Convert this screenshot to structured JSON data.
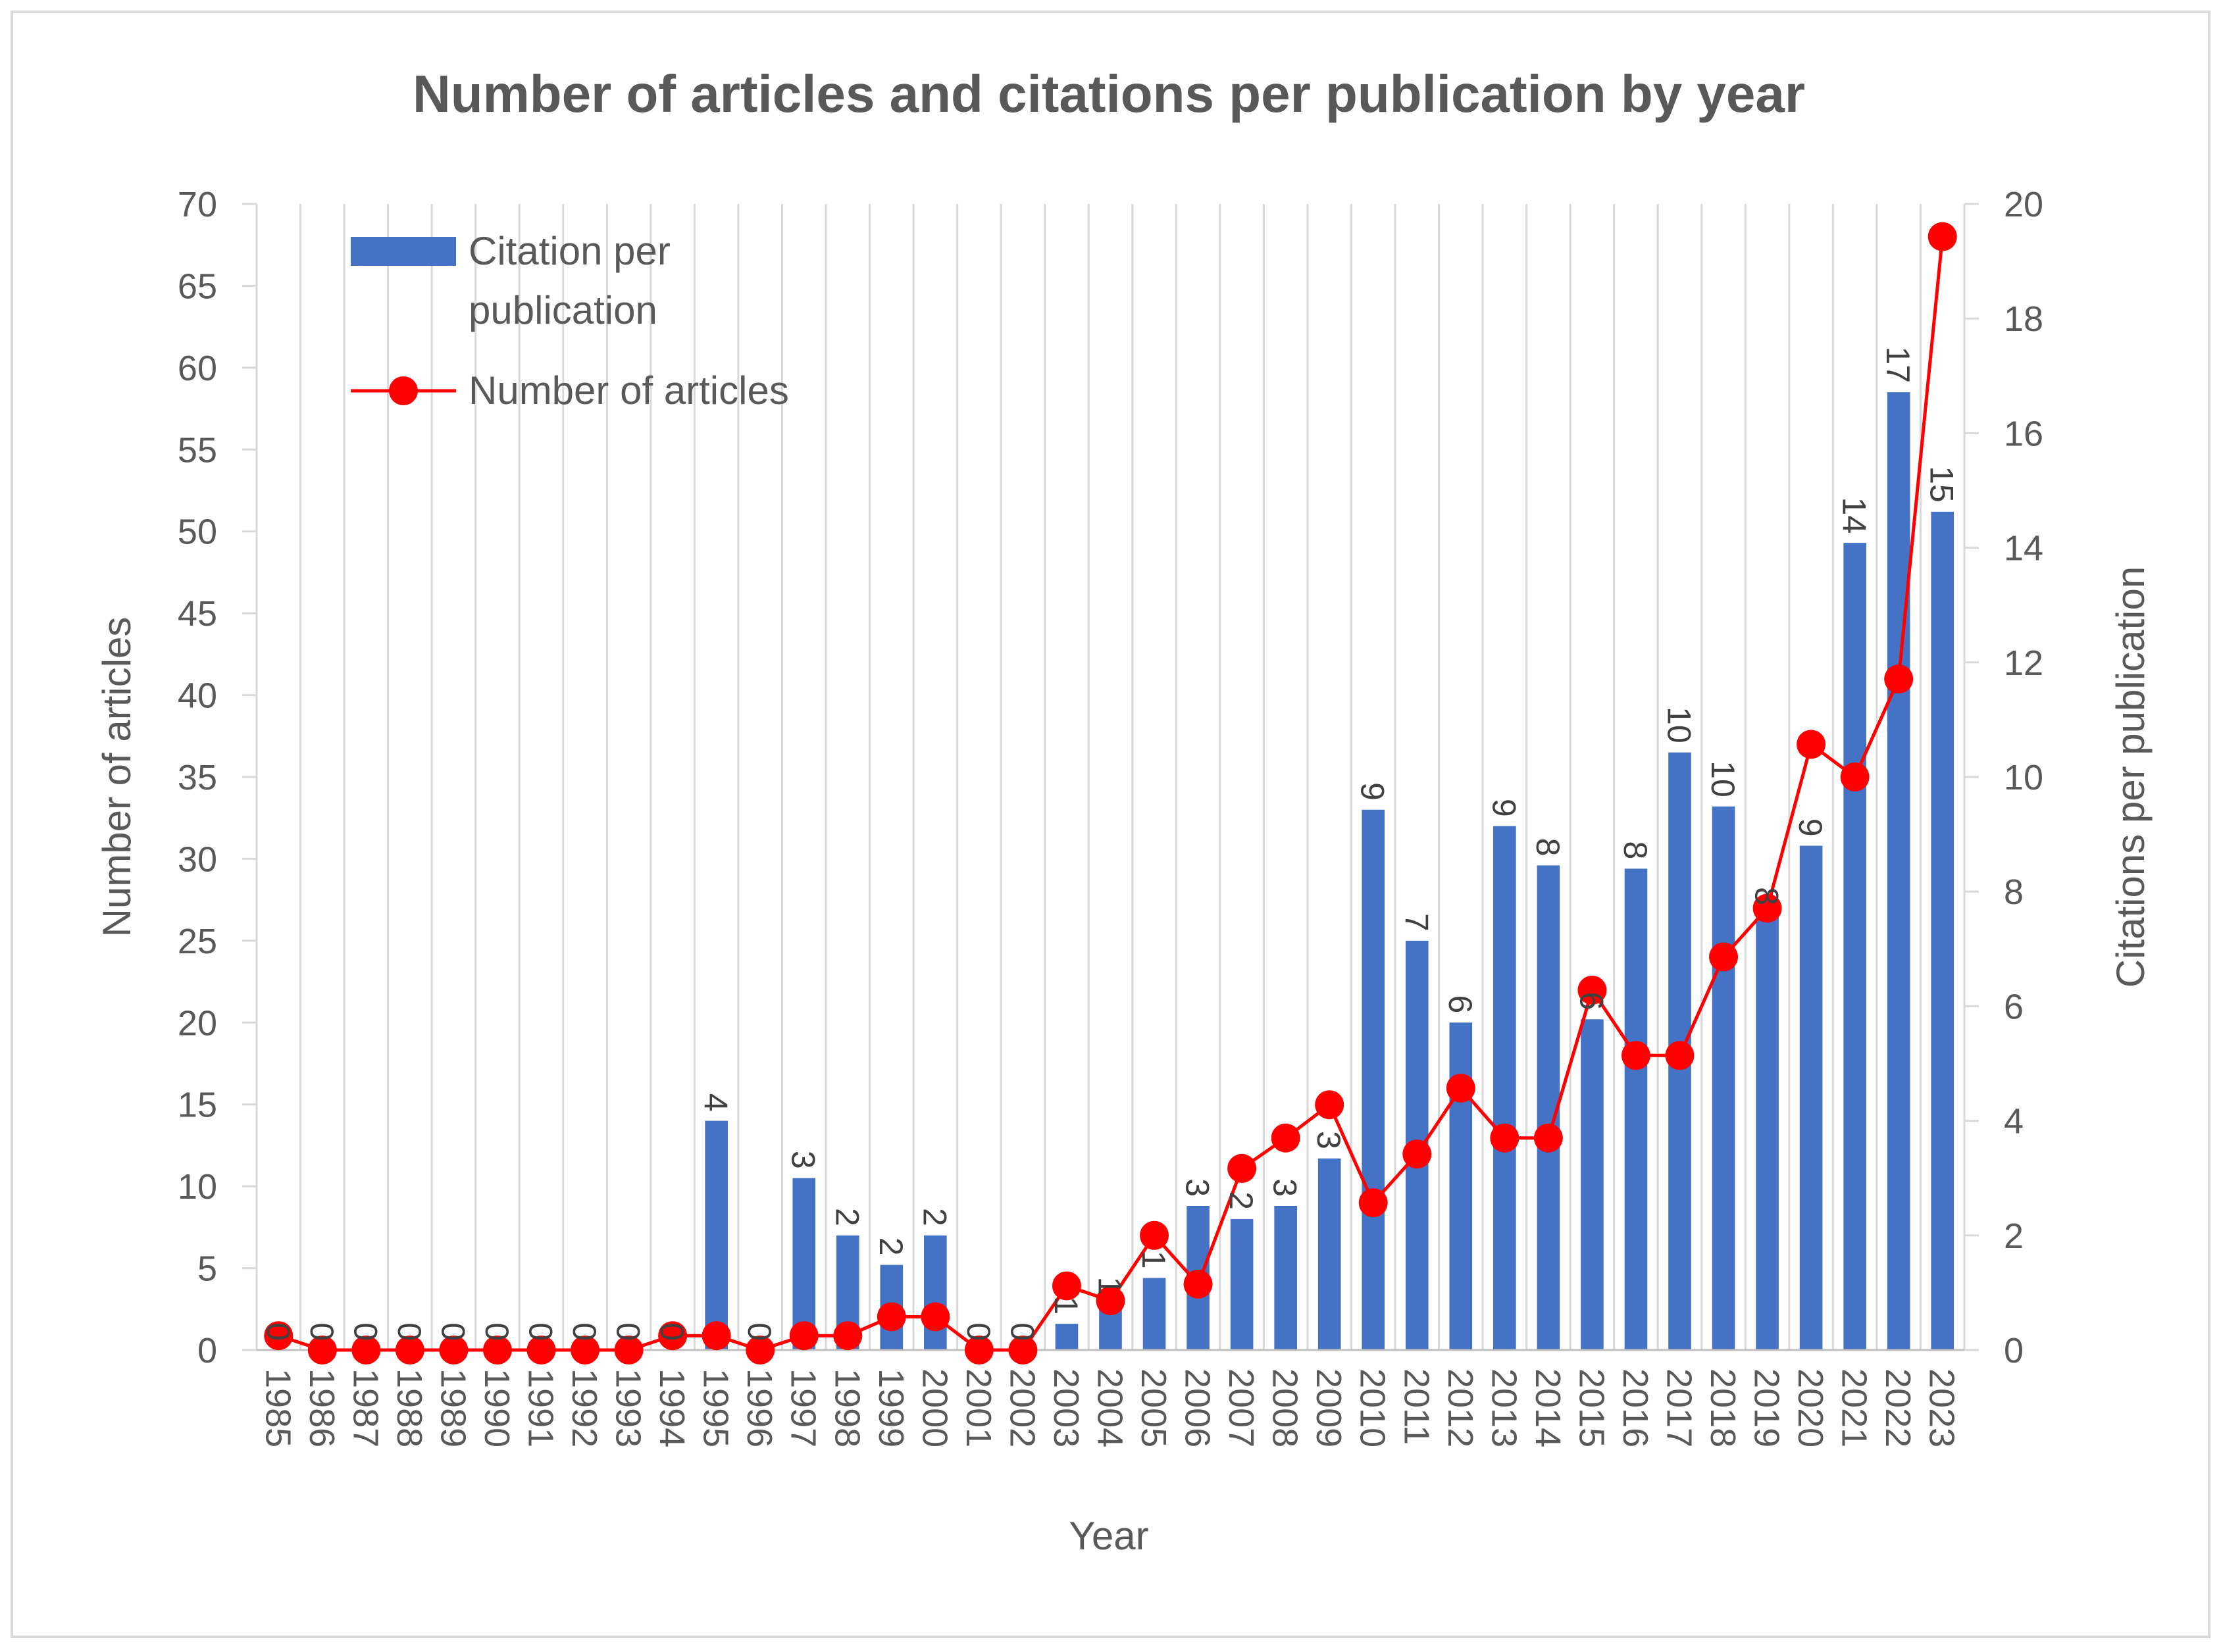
{
  "chart_data": {
    "type": "bar",
    "title": "Number of articles and citations per publication  by year",
    "xlabel": "Year",
    "ylabel": "Number of articles",
    "y2label": "Citations per publication",
    "ylim": [
      0,
      70
    ],
    "y2lim": [
      0,
      20
    ],
    "y_ticks": [
      "0",
      "5",
      "10",
      "15",
      "20",
      "25",
      "30",
      "35",
      "40",
      "45",
      "50",
      "55",
      "60",
      "65",
      "70"
    ],
    "y2_ticks": [
      "0",
      "2",
      "4",
      "6",
      "8",
      "10",
      "12",
      "14",
      "16",
      "18",
      "20"
    ],
    "grid": true,
    "legend_position": "top-left",
    "categories": [
      "1985",
      "1986",
      "1987",
      "1988",
      "1989",
      "1990",
      "1991",
      "1992",
      "1993",
      "1994",
      "1995",
      "1996",
      "1997",
      "1998",
      "1999",
      "2000",
      "2001",
      "2002",
      "2003",
      "2004",
      "2005",
      "2006",
      "2007",
      "2008",
      "2009",
      "2010",
      "2011",
      "2012",
      "2013",
      "2014",
      "2015",
      "2016",
      "2017",
      "2018",
      "2019",
      "2020",
      "2021",
      "2022",
      "2023"
    ],
    "series": [
      {
        "name": "Citation per publication",
        "type": "bar",
        "axis": "left",
        "color": "#4472C4",
        "values": [
          0,
          0,
          0,
          0,
          0,
          0,
          0,
          0,
          0,
          0,
          14,
          0,
          10.5,
          7,
          5.2,
          7,
          0,
          0,
          1.6,
          2.8,
          4.4,
          8.8,
          8,
          8.8,
          11.7,
          33,
          25,
          20,
          32,
          29.6,
          20.2,
          29.4,
          36.5,
          33.2,
          26.6,
          30.8,
          49.3,
          58.5,
          51.2
        ],
        "labels": [
          "0",
          "0",
          "0",
          "0",
          "0",
          "0",
          "0",
          "0",
          "0",
          "0",
          "4",
          "0",
          "3",
          "2",
          "2",
          "2",
          "0",
          "0",
          "1",
          "1",
          "1",
          "3",
          "2",
          "3",
          "3",
          "9",
          "7",
          "6",
          "9",
          "8",
          "6",
          "8",
          "10",
          "10",
          "8",
          "9",
          "14",
          "17",
          "15"
        ]
      },
      {
        "name": "Number of articles",
        "type": "line",
        "axis": "right",
        "color": "#FF0000",
        "values": [
          0.25,
          0,
          0,
          0,
          0,
          0,
          0,
          0,
          0,
          0.25,
          0.25,
          0,
          0.25,
          0.25,
          0.58,
          0.58,
          0,
          0,
          1.12,
          0.86,
          2.0,
          1.15,
          3.17,
          3.7,
          4.28,
          2.57,
          3.42,
          4.57,
          3.7,
          3.7,
          6.28,
          5.14,
          5.14,
          6.86,
          7.71,
          10.57,
          10.0,
          11.71,
          19.43
        ]
      }
    ]
  }
}
